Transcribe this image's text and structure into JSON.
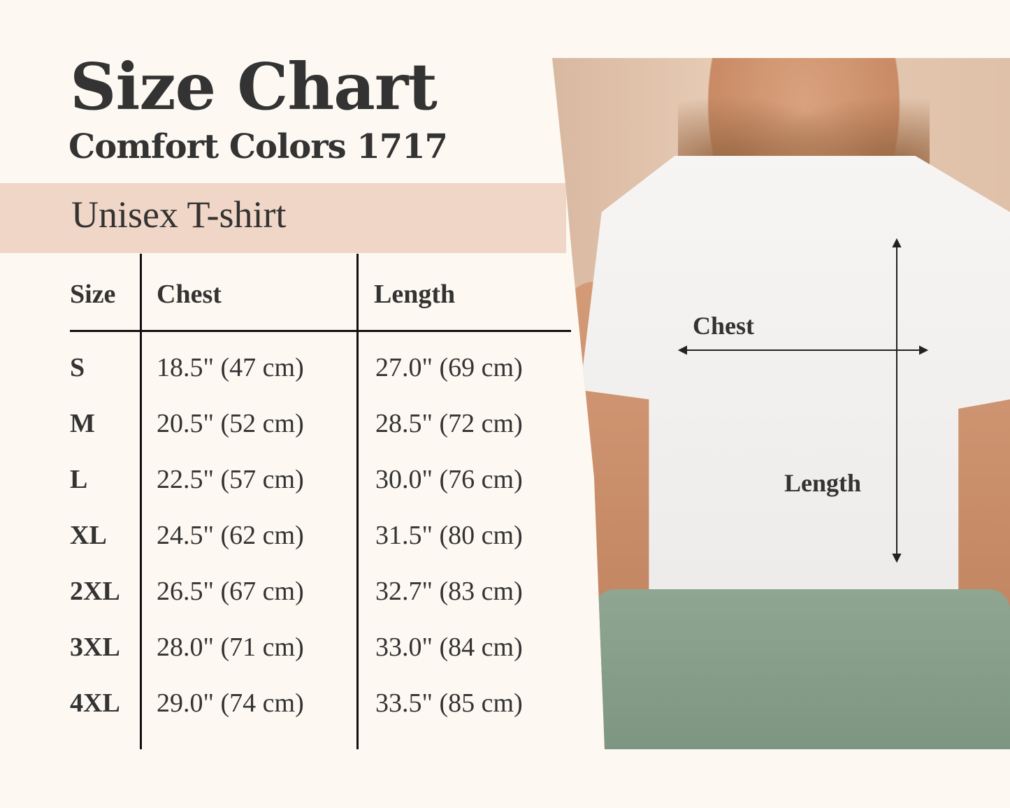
{
  "title": "Size Chart",
  "subtitle": "Comfort Colors 1717",
  "band_label": "Unisex T-shirt",
  "table": {
    "headers": [
      "Size",
      "Chest",
      "Length"
    ],
    "rows": [
      [
        "S",
        "18.5\" (47 cm)",
        "27.0\" (69 cm)"
      ],
      [
        "M",
        "20.5\" (52 cm)",
        "28.5\" (72 cm)"
      ],
      [
        "L",
        "22.5\" (57 cm)",
        "30.0\" (76 cm)"
      ],
      [
        "XL",
        "24.5\" (62 cm)",
        "31.5\" (80 cm)"
      ],
      [
        "2XL",
        "26.5\" (67 cm)",
        "32.7\" (83 cm)"
      ],
      [
        "3XL",
        "28.0\" (71 cm)",
        "33.0\" (84 cm)"
      ],
      [
        "4XL",
        "29.0\" (74 cm)",
        "33.5\" (85 cm)"
      ]
    ]
  },
  "photo": {
    "chest_label": "Chest",
    "length_label": "Length"
  },
  "colors": {
    "background": "#fdf8f2",
    "band": "#f0d6c6",
    "text": "#333333"
  }
}
